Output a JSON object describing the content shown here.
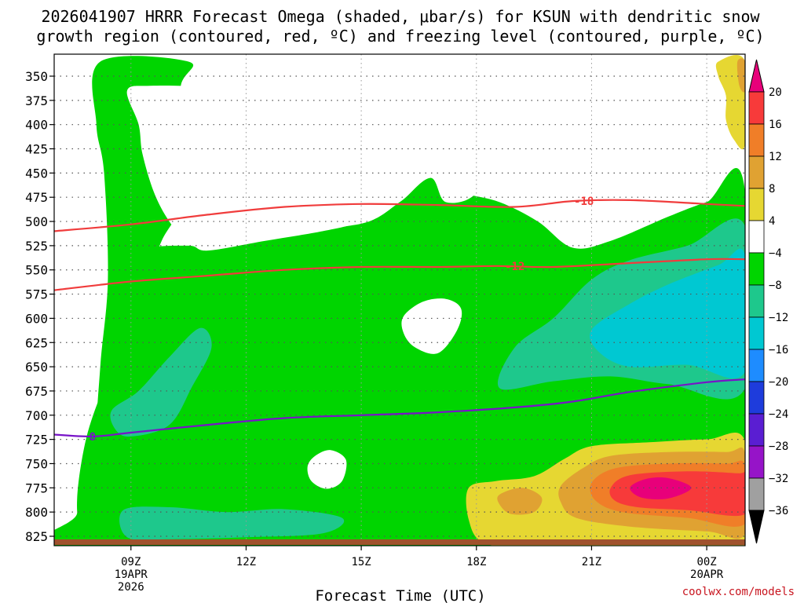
{
  "chart_data": {
    "type": "heatmap",
    "title_line1": "2026041907 HRRR Forecast Omega (shaded, μbar/s) for KSUN with dendritic snow",
    "title_line2": "growth region (contoured, red, ºC) and freezing level (contoured, purple, ºC)",
    "xlabel": "Forecast Time (UTC)",
    "credit": "coolwx.com/models",
    "x_range_hours": [
      7,
      25
    ],
    "x_ticks": [
      {
        "hour": 9,
        "label": "09Z",
        "line2": "19APR",
        "line3": "2026"
      },
      {
        "hour": 12,
        "label": "12Z",
        "line2": "",
        "line3": ""
      },
      {
        "hour": 15,
        "label": "15Z",
        "line2": "",
        "line3": ""
      },
      {
        "hour": 18,
        "label": "18Z",
        "line2": "",
        "line3": ""
      },
      {
        "hour": 21,
        "label": "21Z",
        "line2": "",
        "line3": ""
      },
      {
        "hour": 24,
        "label": "00Z",
        "line2": "20APR",
        "line3": ""
      }
    ],
    "y_ticks": [
      350,
      375,
      400,
      425,
      450,
      475,
      500,
      525,
      550,
      575,
      600,
      625,
      650,
      675,
      700,
      725,
      750,
      775,
      800,
      825
    ],
    "y_range_mb": [
      335,
      840
    ],
    "colorbar": {
      "levels": [
        -36,
        -32,
        -28,
        -24,
        -20,
        -16,
        -12,
        -8,
        -4,
        4,
        8,
        12,
        16,
        20
      ],
      "labels": [
        "20",
        "16",
        "12",
        "8",
        "4",
        "−4",
        "−8",
        "−12",
        "−16",
        "−20",
        "−24",
        "−28",
        "−32",
        "−36"
      ],
      "colors": {
        "above_20": "#e8007a",
        "16_20": "#f73a3a",
        "12_16": "#f07e28",
        "8_12": "#e0a232",
        "4_8": "#e6d732",
        "-4_4": "#ffffff",
        "-8_-4": "#00d500",
        "-12_-8": "#1ec88c",
        "-16_-12": "#00c8d2",
        "-20_-16": "#1e8cff",
        "-24_-20": "#1e3cdc",
        "-28_-24": "#5a1ed2",
        "-32_-28": "#9614c8",
        "-36_-32": "#a0a0a0",
        "below_-36": "#000000"
      }
    },
    "omega_fields": [
      {
        "band": "-8_-4",
        "description": "upper-left column",
        "hours": [
          8.2,
          10.5
        ],
        "mb": [
          335,
          700
        ]
      },
      {
        "band": "-8_-4",
        "description": "broad mid-level region",
        "hours": [
          8,
          25
        ],
        "mb": [
          450,
          840
        ]
      },
      {
        "band": "-12_-8",
        "description": "right-side mid-level",
        "hours": [
          19,
          25
        ],
        "mb": [
          500,
          680
        ]
      },
      {
        "band": "-16_-12",
        "description": "right-side core",
        "hours": [
          21,
          25
        ],
        "mb": [
          550,
          660
        ]
      },
      {
        "band": "-12_-8",
        "description": "left low-level",
        "hours": [
          8.5,
          11
        ],
        "mb": [
          620,
          720
        ]
      },
      {
        "band": "-12_-8",
        "description": "near surface",
        "hours": [
          8.8,
          14.5
        ],
        "mb": [
          790,
          830
        ]
      },
      {
        "band": "4_8",
        "description": "lower-right upward motion",
        "hours": [
          17.8,
          25
        ],
        "mb": [
          730,
          835
        ]
      },
      {
        "band": "8_12",
        "description": "lower-right",
        "hours": [
          20,
          25
        ],
        "mb": [
          740,
          815
        ]
      },
      {
        "band": "12_16",
        "description": "lower-right",
        "hours": [
          21,
          25
        ],
        "mb": [
          745,
          805
        ]
      },
      {
        "band": "16_20",
        "description": "lower-right",
        "hours": [
          21.5,
          25
        ],
        "mb": [
          755,
          800
        ]
      },
      {
        "band": "above_20",
        "description": "lower-right max",
        "hours": [
          22,
          23.5
        ],
        "mb": [
          765,
          785
        ]
      },
      {
        "band": "4_8",
        "description": "upper-right",
        "hours": [
          24.3,
          25
        ],
        "mb": [
          335,
          420
        ]
      },
      {
        "band": "8_12",
        "description": "upper-right edge",
        "hours": [
          24.8,
          25
        ],
        "mb": [
          335,
          365
        ]
      }
    ],
    "temperature_contours": [
      {
        "label": "-18",
        "color": "#f03c3c",
        "label_hour": 20.8,
        "points": [
          [
            7,
            510
          ],
          [
            9,
            503
          ],
          [
            11,
            493
          ],
          [
            13,
            485
          ],
          [
            15,
            482
          ],
          [
            17,
            483
          ],
          [
            19,
            485
          ],
          [
            20.5,
            479
          ],
          [
            22,
            478
          ],
          [
            24,
            482
          ],
          [
            25,
            484
          ]
        ]
      },
      {
        "label": "-12",
        "color": "#f03c3c",
        "label_hour": 19,
        "points": [
          [
            7,
            571
          ],
          [
            9,
            562
          ],
          [
            11,
            556
          ],
          [
            13,
            550
          ],
          [
            15,
            547
          ],
          [
            17,
            547
          ],
          [
            18.5,
            546
          ],
          [
            20,
            547
          ],
          [
            22,
            543
          ],
          [
            24,
            539
          ],
          [
            25,
            539
          ]
        ]
      },
      {
        "label": "0",
        "color": "#7814c8",
        "label_hour": 8,
        "points": [
          [
            7,
            720
          ],
          [
            8,
            722
          ],
          [
            9,
            718
          ],
          [
            11,
            710
          ],
          [
            13,
            703
          ],
          [
            15,
            700
          ],
          [
            17,
            697
          ],
          [
            19,
            692
          ],
          [
            20.5,
            686
          ],
          [
            22,
            676
          ],
          [
            24,
            666
          ],
          [
            25,
            663
          ]
        ]
      }
    ]
  }
}
